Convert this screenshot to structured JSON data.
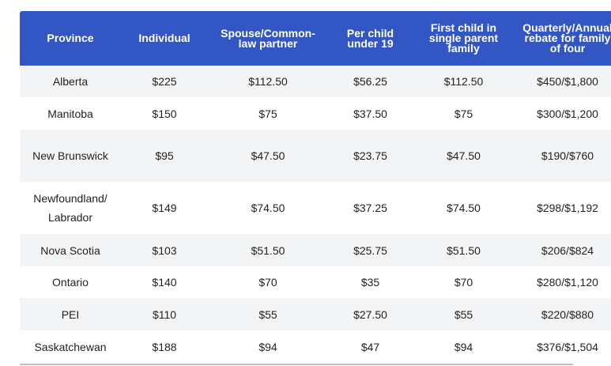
{
  "headers": {
    "province": "Province",
    "individual": "Individual",
    "spouse_line1": "Spouse/Common-",
    "spouse_line2": "law partner",
    "per_child_line1": "Per child",
    "per_child_line2": "under 19",
    "first_child_line1": "First child in",
    "first_child_line2": "single parent",
    "first_child_line3": "family",
    "rebate_line1": "Quarterly/Annual",
    "rebate_line2": "rebate for family",
    "rebate_line3": "of four"
  },
  "rows": [
    {
      "province": "Alberta",
      "individual": "$225",
      "spouse": "$112.50",
      "per_child": "$56.25",
      "first_child": "$112.50",
      "rebate": "$450/$1,800"
    },
    {
      "province": "Manitoba",
      "individual": "$150",
      "spouse": "$75",
      "per_child": "$37.50",
      "first_child": "$75",
      "rebate": "$300/$1,200"
    },
    {
      "province": "New Brunswick",
      "individual": "$95",
      "spouse": "$47.50",
      "per_child": "$23.75",
      "first_child": "$47.50",
      "rebate": "$190/$760"
    },
    {
      "province": "Newfoundland/ Labrador",
      "individual": "$149",
      "spouse": "$74.50",
      "per_child": "$37.25",
      "first_child": "$74.50",
      "rebate": "$298/$1,192"
    },
    {
      "province": "Nova Scotia",
      "individual": "$103",
      "spouse": "$51.50",
      "per_child": "$25.75",
      "first_child": "$51.50",
      "rebate": "$206/$824"
    },
    {
      "province": "Ontario",
      "individual": "$140",
      "spouse": "$70",
      "per_child": "$35",
      "first_child": "$70",
      "rebate": "$280/$1,120"
    },
    {
      "province": "PEI",
      "individual": "$110",
      "spouse": "$55",
      "per_child": "$27.50",
      "first_child": "$55",
      "rebate": "$220/$880"
    },
    {
      "province": "Saskatchewan",
      "individual": "$188",
      "spouse": "$94",
      "per_child": "$47",
      "first_child": "$94",
      "rebate": "$376/$1,504"
    }
  ],
  "colors": {
    "header_bg": "#3257c4",
    "header_text": "#ffffff",
    "stripe": "#f2f4f6"
  }
}
